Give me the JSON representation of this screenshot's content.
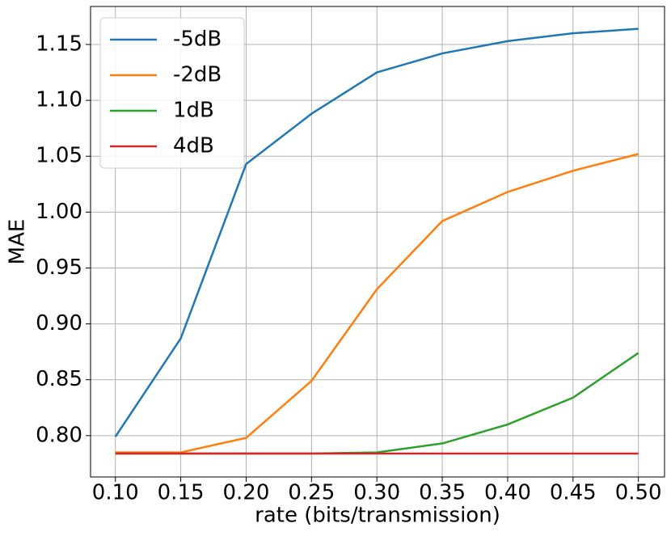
{
  "chart_data": {
    "type": "line",
    "x_label": "rate (bits/transmission)",
    "y_label": "MAE",
    "x": [
      0.1,
      0.15,
      0.2,
      0.25,
      0.3,
      0.35,
      0.4,
      0.45,
      0.5
    ],
    "series": [
      {
        "name": "-5dB",
        "color": "#1f77b4",
        "values": [
          0.799,
          0.887,
          1.043,
          1.088,
          1.125,
          1.142,
          1.153,
          1.16,
          1.164
        ]
      },
      {
        "name": "-2dB",
        "color": "#ff7f0e",
        "values": [
          0.785,
          0.785,
          0.798,
          0.849,
          0.931,
          0.992,
          1.018,
          1.037,
          1.052
        ]
      },
      {
        "name": "1dB",
        "color": "#2ca02c",
        "values": [
          0.784,
          0.784,
          0.784,
          0.784,
          0.785,
          0.793,
          0.81,
          0.834,
          0.874
        ]
      },
      {
        "name": "4dB",
        "color": "#d62728",
        "values": [
          0.784,
          0.784,
          0.784,
          0.784,
          0.784,
          0.784,
          0.784,
          0.784,
          0.784
        ]
      }
    ],
    "xlim": [
      0.081,
      0.52
    ],
    "ylim": [
      0.763,
      1.184
    ],
    "xticks": [
      {
        "value": 0.1,
        "label": "0.10"
      },
      0.15,
      {
        "value": 0.2,
        "label": "0.20"
      },
      0.25,
      {
        "value": 0.3,
        "label": "0.30"
      },
      0.35,
      {
        "value": 0.4,
        "label": "0.40"
      },
      0.45,
      {
        "value": 0.5,
        "label": "0.50"
      }
    ],
    "yticks": [
      {
        "value": 0.8,
        "label": "0.80"
      },
      0.85,
      {
        "value": 0.9,
        "label": "0.90"
      },
      0.95,
      {
        "value": 1.0,
        "label": "1.00"
      },
      1.05,
      {
        "value": 1.1,
        "label": "1.10"
      },
      1.15
    ],
    "grid": true,
    "legend": "upper-left"
  }
}
